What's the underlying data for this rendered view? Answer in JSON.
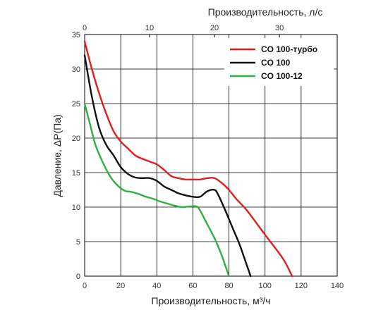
{
  "chart_data": {
    "type": "line",
    "xlabel": "Производительность, м³/ч",
    "x2label": "Производительность, л/с",
    "ylabel": "Давление, ΔP(Па)",
    "xlim": [
      0,
      140
    ],
    "ylim": [
      0,
      35
    ],
    "x2lim": [
      0,
      38.9
    ],
    "xticks": [
      "0",
      "20",
      "40",
      "60",
      "80",
      "100",
      "120",
      "140"
    ],
    "yticks": [
      "0",
      "5",
      "10",
      "15",
      "20",
      "25",
      "30",
      "35"
    ],
    "x2ticks": [
      "0",
      "10",
      "20",
      "30"
    ],
    "grid": true,
    "legend_position": "top-right",
    "series": [
      {
        "name": "CO 100-турбо",
        "color": "#e02020",
        "x": [
          0,
          4,
          8,
          12,
          16,
          20,
          24,
          28,
          32,
          36,
          40,
          44,
          48,
          52,
          56,
          60,
          64,
          68,
          72,
          76,
          80,
          84,
          90,
          100,
          110,
          115
        ],
        "y": [
          34,
          30,
          26.5,
          23.5,
          21,
          19.5,
          18.5,
          17.5,
          17,
          16.6,
          16.2,
          15.4,
          14.5,
          14.2,
          14.0,
          14.0,
          14.0,
          14.2,
          14.2,
          13.5,
          12.5,
          11.2,
          9.5,
          6,
          2.5,
          0
        ]
      },
      {
        "name": "CO 100",
        "color": "#111111",
        "x": [
          0,
          4,
          8,
          12,
          16,
          20,
          24,
          28,
          32,
          36,
          40,
          44,
          48,
          52,
          56,
          60,
          64,
          68,
          72,
          74,
          78,
          82,
          86,
          90,
          92
        ],
        "y": [
          32,
          26,
          21.5,
          19,
          17.5,
          15.8,
          14.8,
          14.3,
          14.2,
          14.2,
          13.8,
          13,
          12.5,
          12,
          11.7,
          11.5,
          11.5,
          12.3,
          12.5,
          11.8,
          9.5,
          7,
          4.5,
          1.5,
          0
        ]
      },
      {
        "name": "CO 100-12",
        "color": "#30b040",
        "x": [
          0,
          3,
          6,
          10,
          14,
          18,
          22,
          26,
          30,
          34,
          38,
          42,
          46,
          50,
          54,
          58,
          62,
          64,
          68,
          72,
          76,
          78,
          80
        ],
        "y": [
          25,
          22,
          19,
          16.5,
          14.5,
          13.2,
          12.4,
          12.2,
          11.9,
          11.5,
          11.2,
          10.8,
          10.5,
          10.2,
          10,
          10.1,
          10.1,
          9.5,
          7.5,
          5.5,
          3,
          1.5,
          0
        ]
      }
    ]
  }
}
